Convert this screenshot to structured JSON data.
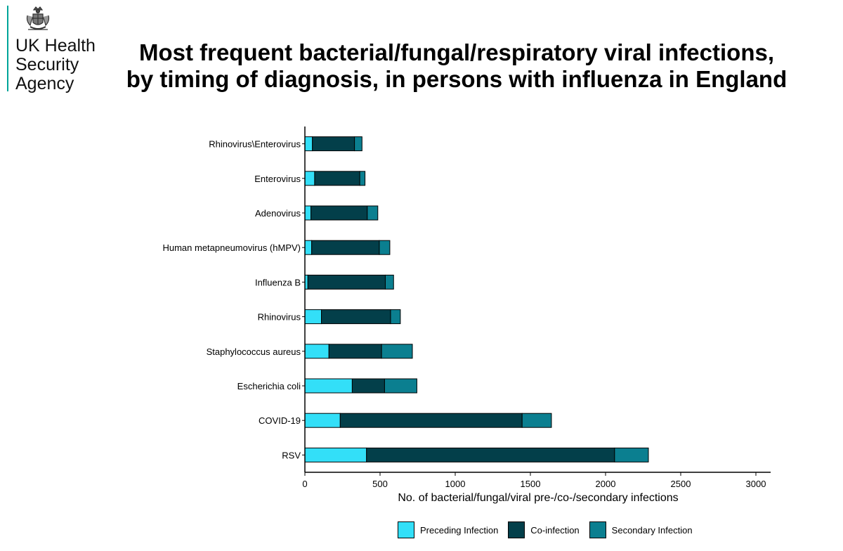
{
  "logo": {
    "lines": [
      "UK Health",
      "Security",
      "Agency"
    ],
    "icon": "royal-crest-icon",
    "accent": "#00a499"
  },
  "chart_data": {
    "type": "bar",
    "orientation": "horizontal",
    "stacked": true,
    "title_lines": [
      "Most frequent bacterial/fungal/respiratory viral infections,",
      "by timing of diagnosis, in persons with influenza in England"
    ],
    "xlabel": "No. of bacterial/fungal/viral pre-/co-/secondary infections",
    "ylabel": "",
    "xlim": [
      0,
      3100
    ],
    "xticks": [
      0,
      500,
      1000,
      1500,
      2000,
      2500,
      3000
    ],
    "categories": [
      "Rhinovirus\\Enterovirus",
      "Enterovirus",
      "Adenovirus",
      "Human metapneumovirus (hMPV)",
      "Influenza B",
      "Rhinovirus",
      "Staphylococcus aureus",
      "Escherichia coli",
      "COVID-19",
      "RSV"
    ],
    "series": [
      {
        "name": "Preceding Infection",
        "color": "#33dff8",
        "values": [
          50,
          65,
          40,
          45,
          20,
          110,
          160,
          315,
          235,
          410
        ]
      },
      {
        "name": "Co-infection",
        "color": "#033f4a",
        "values": [
          280,
          300,
          375,
          450,
          515,
          460,
          350,
          215,
          1210,
          1650
        ]
      },
      {
        "name": "Secondary Infection",
        "color": "#0b7f90",
        "values": [
          50,
          35,
          70,
          70,
          55,
          65,
          205,
          215,
          195,
          225
        ]
      }
    ],
    "grid": false,
    "legend_position": "bottom"
  }
}
